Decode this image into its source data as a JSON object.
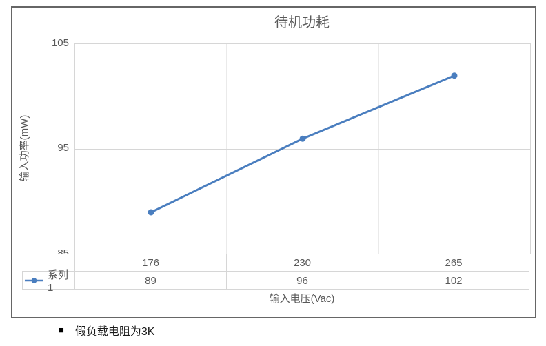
{
  "chart_data": {
    "type": "line",
    "title": "待机功耗",
    "categories": [
      "176",
      "230",
      "265"
    ],
    "series": [
      {
        "name": "系列1",
        "values": [
          89,
          96,
          102
        ]
      }
    ],
    "xlabel": "输入电压(Vac)",
    "ylabel": "输入功率(mW)",
    "ylim": [
      85,
      105
    ],
    "yticks": [
      "105",
      "95",
      "85"
    ],
    "grid": true,
    "legend_position": "data-table-left",
    "data_table_shown": true,
    "line_color": "#4a7ebf",
    "gridline_color": "#d6d6d6",
    "text_color": "#595959"
  },
  "note": {
    "bullet": "■",
    "text": "假负载电阻为3K"
  }
}
